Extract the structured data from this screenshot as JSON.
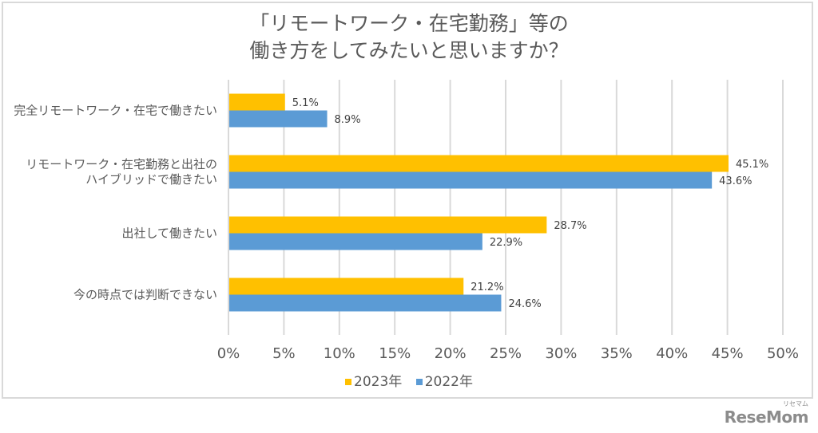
{
  "chart_data": {
    "type": "bar",
    "orientation": "horizontal",
    "title": [
      "「リモートワーク・在宅勤務」等の",
      "働き方をしてみたいと思いますか？"
    ],
    "categories": [
      [
        "完全リモートワーク・在宅で働きたい"
      ],
      [
        "リモートワーク・在宅勤務と出社の",
        "ハイブリッドで働きたい"
      ],
      [
        "出社して働きたい"
      ],
      [
        "今の時点では判断できない"
      ]
    ],
    "series": [
      {
        "name": "2023年",
        "color": "#ffc000",
        "values": [
          5.1,
          45.1,
          28.7,
          21.2
        ],
        "labels": [
          "5.1%",
          "45.1%",
          "28.7%",
          "21.2%"
        ]
      },
      {
        "name": "2022年",
        "color": "#5b9bd5",
        "values": [
          8.9,
          43.6,
          22.9,
          24.6
        ],
        "labels": [
          "8.9%",
          "43.6%",
          "22.9%",
          "24.6%"
        ]
      }
    ],
    "xlim": [
      0,
      50
    ],
    "xticks": [
      0,
      5,
      10,
      15,
      20,
      25,
      30,
      35,
      40,
      45,
      50
    ],
    "xtick_labels": [
      "0%",
      "5%",
      "10%",
      "15%",
      "20%",
      "25%",
      "30%",
      "35%",
      "40%",
      "45%",
      "50%"
    ],
    "xlabel": "",
    "ylabel": "",
    "grid": true,
    "legend_position": "bottom-center"
  },
  "watermark": {
    "text": "ReseMom",
    "subtext": "リセマム"
  }
}
